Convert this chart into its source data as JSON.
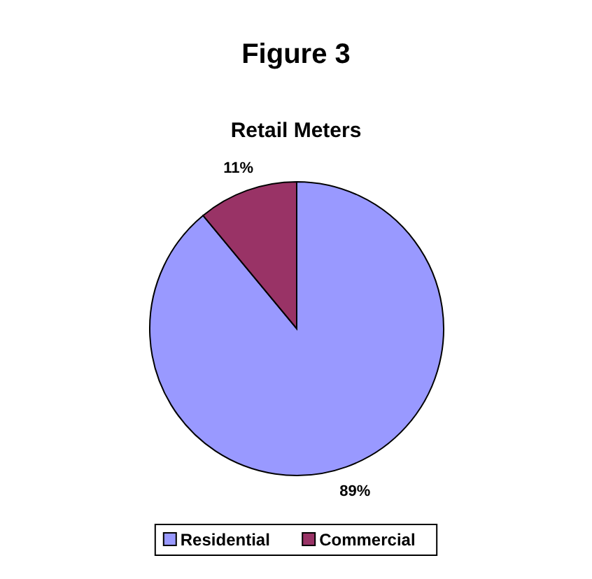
{
  "chart_data": {
    "type": "pie",
    "title": "Figure 3",
    "subtitle": "Retail Meters",
    "categories": [
      "Residential",
      "Commercial"
    ],
    "values": [
      89,
      11
    ],
    "colors": [
      "#9999ff",
      "#993366"
    ],
    "value_labels": [
      "89%",
      "11%"
    ],
    "legend": "bottom"
  }
}
